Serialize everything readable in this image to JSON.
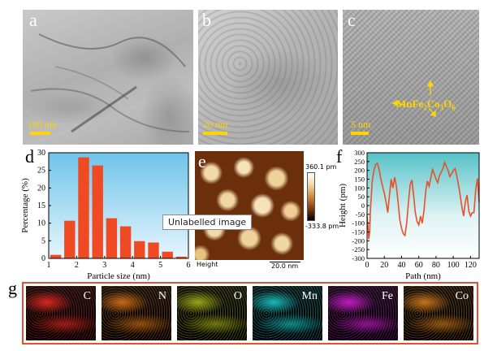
{
  "panels": {
    "a": {
      "letter": "a",
      "scale_label": "100 nm"
    },
    "b": {
      "letter": "b",
      "scale_label": "20 nm"
    },
    "c": {
      "letter": "c",
      "scale_label": "5 nm",
      "phase_label": "MnFe",
      "phase_sub1": "2",
      "phase_mid": "Co",
      "phase_sub2": "3",
      "phase_o": "O",
      "phase_sub3": "6"
    },
    "d": {
      "letter": "d"
    },
    "e": {
      "letter": "e",
      "footer_left": "Height",
      "footer_scale": "20.0 nm",
      "colorbar_max": "360.1 pm",
      "colorbar_min": "-333.8 pm"
    },
    "f": {
      "letter": "f"
    },
    "g": {
      "letter": "g"
    }
  },
  "tooltip": {
    "text": "Unlabelled image"
  },
  "eds_maps": [
    {
      "label": "C",
      "color": "#d7261f"
    },
    {
      "label": "N",
      "color": "#c86a14"
    },
    {
      "label": "O",
      "color": "#9aa316"
    },
    {
      "label": "Mn",
      "color": "#18b9b9"
    },
    {
      "label": "Fe",
      "color": "#c21bc2"
    },
    {
      "label": "Co",
      "color": "#c8741a"
    }
  ],
  "chart_data": [
    {
      "type": "bar",
      "panel": "d",
      "xlabel": "Particle size (nm)",
      "ylabel": "Percentage (%)",
      "xlim": [
        1,
        6
      ],
      "ylim": [
        0,
        30
      ],
      "xticks": [
        1,
        2,
        3,
        4,
        5,
        6
      ],
      "yticks": [
        0,
        5,
        10,
        15,
        20,
        25,
        30
      ],
      "x": [
        1.25,
        1.75,
        2.25,
        2.75,
        3.25,
        3.75,
        4.25,
        4.75,
        5.25,
        5.75
      ],
      "values": [
        1.0,
        10.7,
        28.7,
        26.4,
        11.4,
        9.1,
        4.9,
        4.5,
        1.9,
        0.5
      ],
      "bar_color": "#f04a25",
      "background": "gradient-light-blue"
    },
    {
      "type": "line",
      "panel": "f",
      "xlabel": "Path (nm)",
      "ylabel": "Height (pm)",
      "xlim": [
        0,
        130
      ],
      "ylim": [
        -300,
        300
      ],
      "xticks": [
        0,
        20,
        40,
        60,
        80,
        100,
        120
      ],
      "yticks": [
        -300,
        -250,
        -200,
        -150,
        -100,
        -50,
        0,
        50,
        100,
        150,
        200,
        250,
        300
      ],
      "line_color": "#e8502a",
      "background": "gradient-teal",
      "x": [
        0,
        1,
        2,
        3,
        4,
        5,
        6,
        8,
        10,
        12,
        14,
        16,
        18,
        20,
        22,
        24,
        26,
        28,
        30,
        32,
        34,
        36,
        38,
        40,
        42,
        44,
        46,
        48,
        50,
        52,
        54,
        56,
        58,
        60,
        62,
        64,
        66,
        68,
        70,
        72,
        74,
        76,
        78,
        80,
        82,
        84,
        86,
        88,
        90,
        92,
        94,
        96,
        98,
        100,
        102,
        104,
        106,
        108,
        110,
        112,
        114,
        116,
        118,
        120,
        122,
        124,
        126,
        128,
        130
      ],
      "y": [
        -60,
        -120,
        -190,
        -150,
        -20,
        60,
        140,
        200,
        235,
        240,
        205,
        150,
        110,
        70,
        20,
        -40,
        60,
        150,
        100,
        160,
        110,
        20,
        -80,
        -130,
        -160,
        -170,
        -100,
        20,
        120,
        145,
        60,
        -40,
        -90,
        -110,
        -60,
        -100,
        -30,
        80,
        140,
        110,
        160,
        205,
        180,
        150,
        130,
        170,
        190,
        210,
        245,
        220,
        200,
        165,
        180,
        200,
        210,
        170,
        120,
        60,
        -10,
        -60,
        20,
        60,
        -30,
        -60,
        -40,
        -40,
        90,
        155,
        20
      ]
    }
  ]
}
